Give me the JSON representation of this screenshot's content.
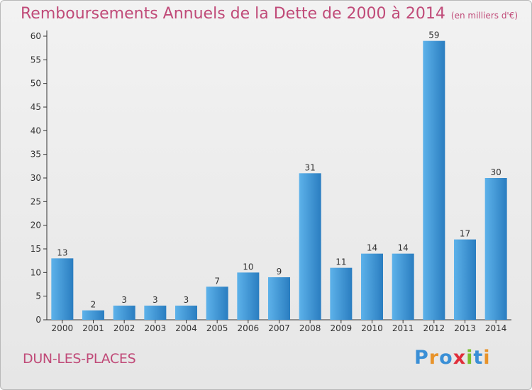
{
  "header": {
    "title": "Remboursements Annuels de la Dette de 2000 à 2014",
    "subtitle": "(en milliers d'€)"
  },
  "footer": {
    "place": "DUN-LES-PLACES",
    "logo": [
      "P",
      "r",
      "o",
      "x",
      "i",
      "t",
      "i"
    ],
    "logo_colors": [
      "#3a8fd6",
      "#e8932a",
      "#3a8fd6",
      "#e02e3a",
      "#7bbf2e",
      "#3a8fd6",
      "#e8932a"
    ]
  },
  "colors": {
    "bar_light": "#5db2ea",
    "bar_dark": "#2a7dc0",
    "accent": "#c04a78"
  },
  "chart_data": {
    "type": "bar",
    "categories": [
      "2000",
      "2001",
      "2002",
      "2003",
      "2004",
      "2005",
      "2006",
      "2007",
      "2008",
      "2009",
      "2010",
      "2011",
      "2012",
      "2013",
      "2014"
    ],
    "values": [
      13,
      2,
      3,
      3,
      3,
      7,
      10,
      9,
      31,
      11,
      14,
      14,
      59,
      17,
      30
    ],
    "ylim": [
      0,
      60
    ],
    "yticks": [
      0,
      5,
      10,
      15,
      20,
      25,
      30,
      35,
      40,
      45,
      50,
      55,
      60
    ],
    "grid": false
  }
}
